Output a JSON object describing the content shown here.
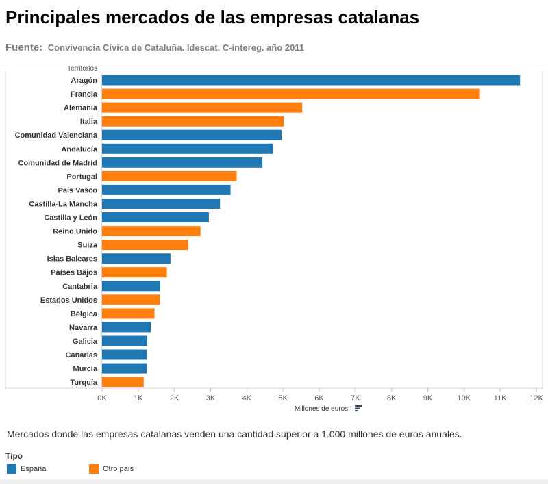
{
  "header": {
    "title": "Principales mercados de las empresas catalanas",
    "source_label": "Fuente:",
    "source_text": "Convivencia Cívica de Cataluña. Idescat. C-intereg. año 2011"
  },
  "caption": "Mercados donde las empresas catalanas venden una cantidad superior a 1.000 millones de euros anuales.",
  "legend": {
    "title": "Tipo",
    "items": [
      {
        "label": "España",
        "color": "#1f77b4"
      },
      {
        "label": "Otro país",
        "color": "#ff7f0e"
      }
    ]
  },
  "sort_icon": "sort-descending-icon",
  "chart_data": {
    "type": "bar",
    "orientation": "horizontal",
    "ylabel": "Territorios",
    "xlabel": "Millones de euros",
    "xlim": [
      0,
      12000
    ],
    "xticks": [
      0,
      1000,
      2000,
      3000,
      4000,
      5000,
      6000,
      7000,
      8000,
      9000,
      10000,
      11000,
      12000
    ],
    "xtick_labels": [
      "0K",
      "1K",
      "2K",
      "3K",
      "4K",
      "5K",
      "6K",
      "7K",
      "8K",
      "9K",
      "10K",
      "11K",
      "12K"
    ],
    "grid": false,
    "colors": {
      "España": "#1f77b4",
      "Otro país": "#ff7f0e"
    },
    "categories": [
      "Aragón",
      "Francia",
      "Alemania",
      "Italia",
      "Comunidad Valenciana",
      "Andalucía",
      "Comunidad de Madrid",
      "Portugal",
      "País Vasco",
      "Castilla-La Mancha",
      "Castilla y León",
      "Reino Unido",
      "Suiza",
      "Islas Baleares",
      "Países Bajos",
      "Cantabria",
      "Estados Unidos",
      "Bélgica",
      "Navarra",
      "Galicia",
      "Canarias",
      "Murcia",
      "Turquía"
    ],
    "values": [
      11550,
      10440,
      5530,
      5020,
      4960,
      4720,
      4430,
      3720,
      3550,
      3260,
      2950,
      2720,
      2380,
      1890,
      1790,
      1600,
      1600,
      1450,
      1350,
      1250,
      1240,
      1240,
      1150
    ],
    "tipo": [
      "España",
      "Otro país",
      "Otro país",
      "Otro país",
      "España",
      "España",
      "España",
      "Otro país",
      "España",
      "España",
      "España",
      "Otro país",
      "Otro país",
      "España",
      "Otro país",
      "España",
      "Otro país",
      "Otro país",
      "España",
      "España",
      "España",
      "España",
      "Otro país"
    ]
  }
}
